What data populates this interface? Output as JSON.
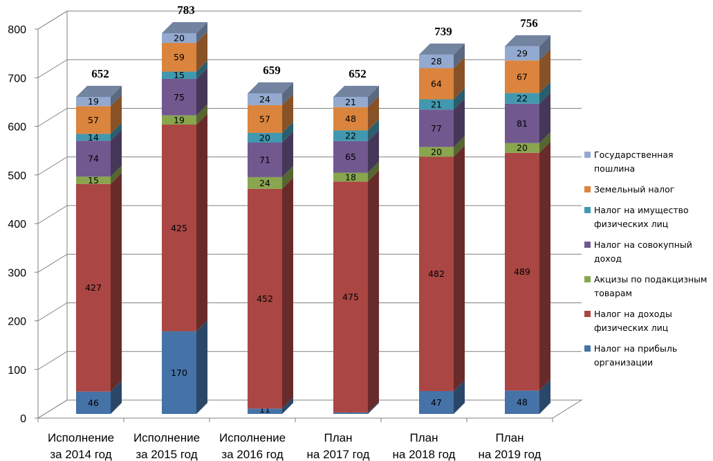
{
  "chart_data": {
    "type": "bar",
    "stacked": true,
    "three_d": true,
    "title": "",
    "xlabel": "",
    "ylabel": "",
    "ylim": [
      0,
      800
    ],
    "yticks": [
      0,
      100,
      200,
      300,
      400,
      500,
      600,
      700,
      800
    ],
    "grid": true,
    "legend_position": "right",
    "categories": [
      "Исполнение за 2014 год",
      "Исполнение за 2015 год",
      "Исполнение за 2016 год",
      "План на 2017 год",
      "План на 2018 год",
      "План на 2019 год"
    ],
    "category_lines": [
      [
        "Исполнение",
        "за 2014 год"
      ],
      [
        "Исполнение",
        "за 2015 год"
      ],
      [
        "Исполнение",
        "за 2016 год"
      ],
      [
        "План",
        "на 2017 год"
      ],
      [
        "План",
        "на 2018 год"
      ],
      [
        "План",
        "на 2019 год"
      ]
    ],
    "totals": [
      652,
      783,
      659,
      652,
      739,
      756
    ],
    "series": [
      {
        "name": "Налог на прибыль организации",
        "color": "#4572A7",
        "values": [
          46,
          170,
          11,
          3,
          47,
          48
        ]
      },
      {
        "name": "Налог на доходы физических лиц",
        "color": "#AA4643",
        "values": [
          427,
          425,
          452,
          475,
          482,
          489
        ]
      },
      {
        "name": "Акцизы по подакцизным товарам",
        "color": "#89A54E",
        "values": [
          15,
          19,
          24,
          18,
          20,
          20
        ]
      },
      {
        "name": "Налог на совокупный доход",
        "color": "#71588F",
        "values": [
          74,
          75,
          71,
          65,
          77,
          81
        ]
      },
      {
        "name": "Налог на имущество физических лиц",
        "color": "#4198AF",
        "values": [
          14,
          15,
          20,
          22,
          21,
          22
        ]
      },
      {
        "name": "Земельный налог",
        "color": "#DB843D",
        "values": [
          57,
          59,
          57,
          48,
          64,
          67
        ]
      },
      {
        "name": "Государственная пошлина",
        "color": "#93A9CF",
        "values": [
          19,
          20,
          24,
          21,
          28,
          29
        ]
      }
    ],
    "legend": {
      "order": [
        6,
        5,
        4,
        3,
        2,
        1,
        0
      ],
      "lines": [
        [
          "Государственная",
          "пошлина"
        ],
        [
          "Земельный налог"
        ],
        [
          "Налог на имущество",
          "физических лиц"
        ],
        [
          "Налог на совокупный",
          "доход"
        ],
        [
          "Акцизы по подакцизным",
          "товарам"
        ],
        [
          "Налог на доходы",
          "физических лиц"
        ],
        [
          "Налог на прибыль",
          "организации"
        ]
      ]
    }
  }
}
